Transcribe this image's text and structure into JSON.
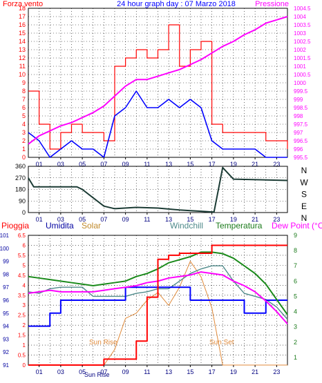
{
  "colors": {
    "wind": "#ff0000",
    "speed": "#0000ff",
    "pressure": "#ff00ff",
    "direction": "#1a3a33",
    "rain": "#ff0000",
    "humidity": "#0000ff",
    "solar": "#e08a3a",
    "windchill": "#4f8a8a",
    "temperature": "#1a8a1a",
    "dewpoint": "#ff00ff",
    "grid": "#000000",
    "frame": "#000000"
  },
  "chart_data": [
    {
      "type": "line",
      "title": "24 hour graph day : 07 Marzo 2018",
      "left_label": "Forza vento",
      "right_label": "Pressione",
      "x_ticks": [
        "01",
        "03",
        "05",
        "07",
        "09",
        "11",
        "13",
        "15",
        "17",
        "19",
        "21",
        "23"
      ],
      "ylim_left": [
        0,
        18
      ],
      "y_ticks_left": [
        "0",
        "1",
        "2",
        "3",
        "4",
        "5",
        "6",
        "7",
        "8",
        "9",
        "10",
        "11",
        "12",
        "13",
        "14",
        "15",
        "16",
        "17",
        "18"
      ],
      "ylim_right": [
        995.5,
        1004.5
      ],
      "y_ticks_right": [
        "995.5",
        "996",
        "996.5",
        "997",
        "997.5",
        "998",
        "998.5",
        "999",
        "999.5",
        "1000",
        "1000.5",
        "1001",
        "1001.5",
        "1002",
        "1002.5",
        "1003",
        "1003.5",
        "1004",
        "1004.5"
      ],
      "x_hours": [
        0,
        1,
        2,
        3,
        4,
        5,
        6,
        7,
        8,
        9,
        10,
        11,
        12,
        13,
        14,
        15,
        16,
        17,
        18,
        19,
        20,
        21,
        22,
        23,
        24
      ],
      "series": [
        {
          "key": "wind_gust",
          "values": [
            8,
            4,
            1,
            3,
            4,
            3,
            3,
            2,
            11,
            12,
            13,
            12,
            13,
            16,
            11,
            13,
            14,
            4,
            3,
            3,
            3,
            3,
            2,
            2,
            1
          ]
        },
        {
          "key": "wind_speed",
          "values": [
            3,
            2,
            0,
            1,
            2,
            1,
            1,
            0,
            5,
            6,
            8,
            6,
            6,
            7,
            6,
            7,
            6,
            2,
            1,
            1,
            1,
            1,
            0,
            0,
            0
          ]
        },
        {
          "key": "pressure",
          "values": [
            996.3,
            996.8,
            997.1,
            997.4,
            997.6,
            997.9,
            998.2,
            998.6,
            999.2,
            999.8,
            1000.2,
            1000.2,
            1000.4,
            1000.6,
            1000.8,
            1001.1,
            1001.4,
            1001.8,
            1002.2,
            1002.5,
            1002.9,
            1003.2,
            1003.6,
            1003.8,
            1004.0
          ]
        }
      ]
    },
    {
      "type": "line",
      "y_ticks": [
        "360",
        "270",
        "180",
        "90",
        "0"
      ],
      "ylim": [
        0,
        360
      ],
      "compass_labels": [
        "N",
        "W",
        "S",
        "E",
        "N"
      ],
      "x_hours": [
        0,
        0.5,
        4.5,
        5,
        7,
        8,
        10,
        12,
        14,
        15,
        16,
        17,
        17.2,
        18,
        19,
        24
      ],
      "series": [
        {
          "key": "direction",
          "values": [
            270,
            200,
            200,
            180,
            50,
            30,
            40,
            35,
            20,
            15,
            10,
            5,
            5,
            350,
            260,
            250
          ]
        }
      ]
    },
    {
      "type": "line",
      "legend": {
        "rain": "Pioggia",
        "humidity": "Umidita",
        "solar": "Solar",
        "windchill": "Windchill",
        "temperature": "Temperatura",
        "dewpoint": "Dew Point (°C)"
      },
      "x_ticks": [
        "01",
        "03",
        "05",
        "07",
        "09",
        "11",
        "13",
        "15",
        "17",
        "19",
        "21",
        "23"
      ],
      "ylim_rain": [
        0,
        6.5
      ],
      "y_ticks_rain": [
        "0",
        "0.5",
        "1",
        "1.5",
        "2",
        "2.5",
        "3",
        "3.5",
        "4",
        "4.5",
        "5",
        "5.5",
        "6",
        "6.5"
      ],
      "ylim_humidity": [
        91,
        101
      ],
      "y_ticks_humidity": [
        "91",
        "92",
        "93",
        "94",
        "95",
        "96",
        "97",
        "98",
        "99",
        "100",
        "101"
      ],
      "ylim_temp": [
        0.5,
        9
      ],
      "y_ticks_temp": [
        "1",
        "2",
        "3",
        "4",
        "5",
        "6",
        "7",
        "8",
        "9"
      ],
      "annotations": {
        "sunrise": "Sun Rise",
        "sunset": "Sun Set",
        "sunrise_axis": "Sun Rise"
      },
      "x_hours": [
        0,
        1,
        2,
        3,
        4,
        5,
        6,
        7,
        8,
        9,
        10,
        11,
        12,
        13,
        14,
        15,
        16,
        17,
        18,
        19,
        20,
        21,
        22,
        23,
        24
      ],
      "series": [
        {
          "key": "rain",
          "values": [
            0,
            0,
            0,
            0,
            0,
            0,
            0,
            0.3,
            0.3,
            0.3,
            1.2,
            3.4,
            5.3,
            5.5,
            5.6,
            5.6,
            5.6,
            6.0,
            6.0,
            6.0,
            6.0,
            6.0,
            6.0,
            6.0,
            6.0
          ]
        },
        {
          "key": "humidity",
          "values": [
            94,
            94,
            95,
            96,
            96,
            96,
            96,
            96,
            96,
            97,
            97,
            97,
            97,
            97,
            97,
            96,
            96,
            96,
            96,
            96,
            95,
            95,
            96,
            96,
            96
          ]
        },
        {
          "key": "solar",
          "values": [
            0,
            0,
            0,
            0,
            0,
            0,
            0,
            0,
            60,
            180,
            200,
            250,
            280,
            230,
            300,
            400,
            340,
            220,
            0,
            0,
            0,
            0,
            0,
            0,
            0
          ]
        },
        {
          "key": "windchill",
          "values": [
            5.3,
            5.2,
            5.5,
            5.6,
            5.6,
            5.6,
            5.0,
            5.0,
            5.0,
            5.0,
            5.2,
            5.3,
            5.5,
            5.5,
            6.0,
            6.5,
            6.8,
            7.0,
            7.0,
            6.0,
            5.2,
            5.0,
            4.8,
            4.3,
            3.5
          ]
        },
        {
          "key": "temperature",
          "values": [
            6.3,
            6.2,
            6.1,
            6.0,
            5.9,
            5.8,
            5.7,
            5.8,
            5.9,
            6.0,
            6.3,
            6.5,
            6.8,
            7.2,
            7.4,
            7.6,
            7.9,
            7.9,
            7.8,
            7.5,
            7.0,
            6.5,
            5.8,
            4.8,
            3.8
          ]
        },
        {
          "key": "dewpoint",
          "values": [
            5.2,
            5.3,
            5.4,
            5.3,
            5.3,
            5.3,
            5.3,
            5.4,
            5.5,
            5.6,
            5.7,
            5.9,
            6.0,
            6.2,
            6.3,
            6.4,
            6.6,
            6.5,
            6.4,
            6.0,
            5.7,
            5.3,
            4.7,
            4.0,
            3.2
          ]
        }
      ]
    }
  ]
}
